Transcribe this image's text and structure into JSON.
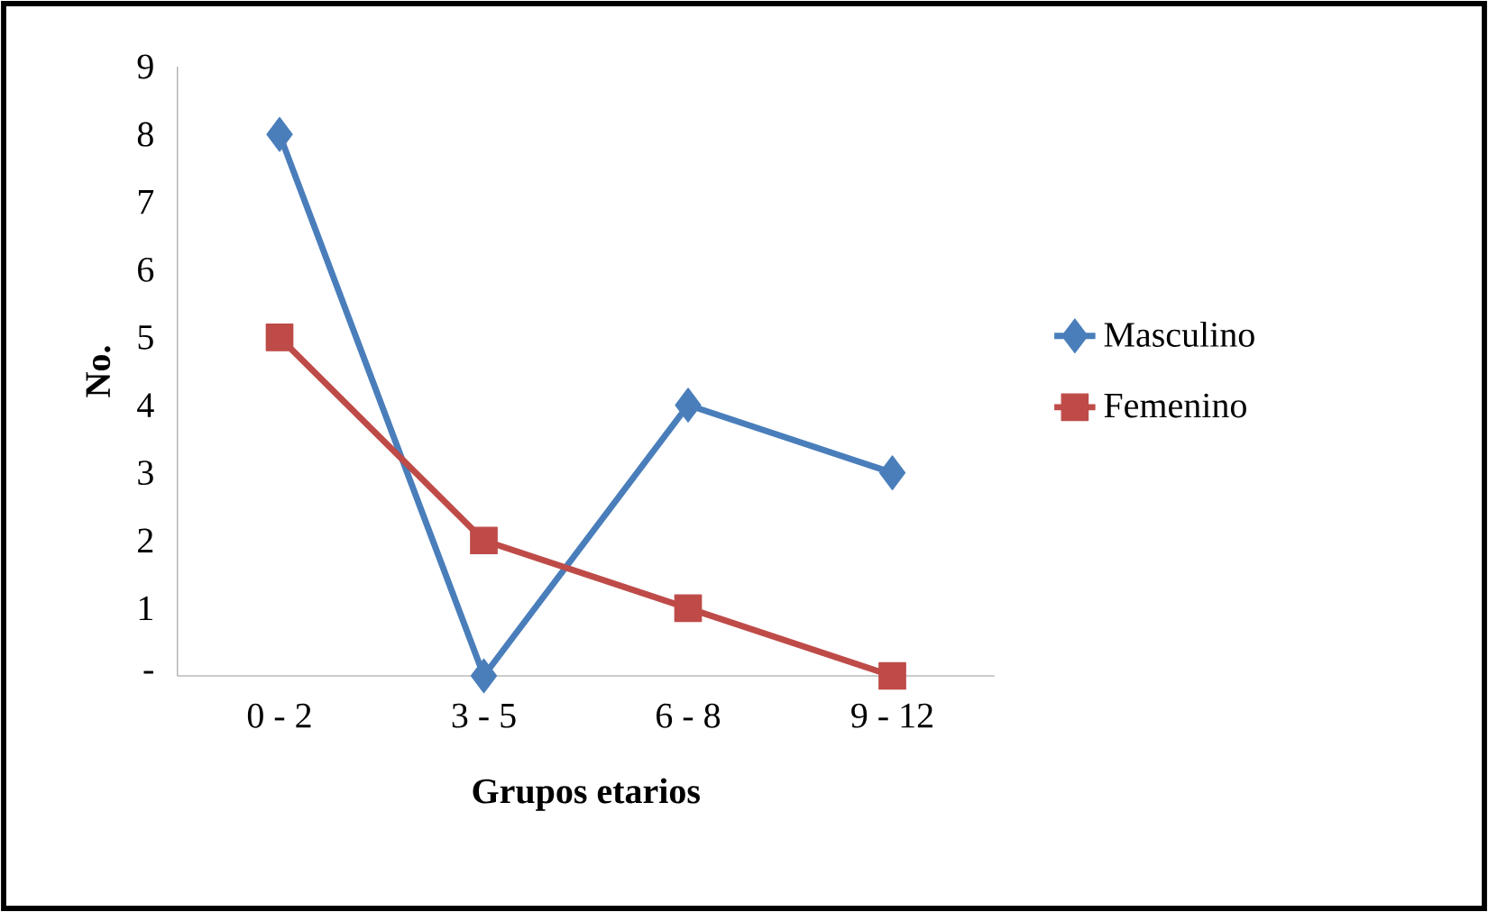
{
  "chart_data": {
    "type": "line",
    "xlabel": "Grupos etarios",
    "ylabel": "No.",
    "categories": [
      "0 - 2",
      "3 - 5",
      "6 - 8",
      "9 - 12"
    ],
    "series": [
      {
        "name": "Masculino",
        "color": "#4a7ebb",
        "marker": "diamond",
        "values": [
          8,
          0,
          4,
          3
        ]
      },
      {
        "name": "Femenino",
        "color": "#be4b48",
        "marker": "square",
        "values": [
          5,
          2,
          1,
          0
        ]
      }
    ],
    "ylim": [
      0,
      9
    ],
    "yticks": [
      {
        "value": 0,
        "label": "-"
      },
      1,
      2,
      3,
      4,
      5,
      6,
      7,
      8,
      9
    ],
    "grid": false,
    "legend": "right",
    "line_style": "solid"
  }
}
